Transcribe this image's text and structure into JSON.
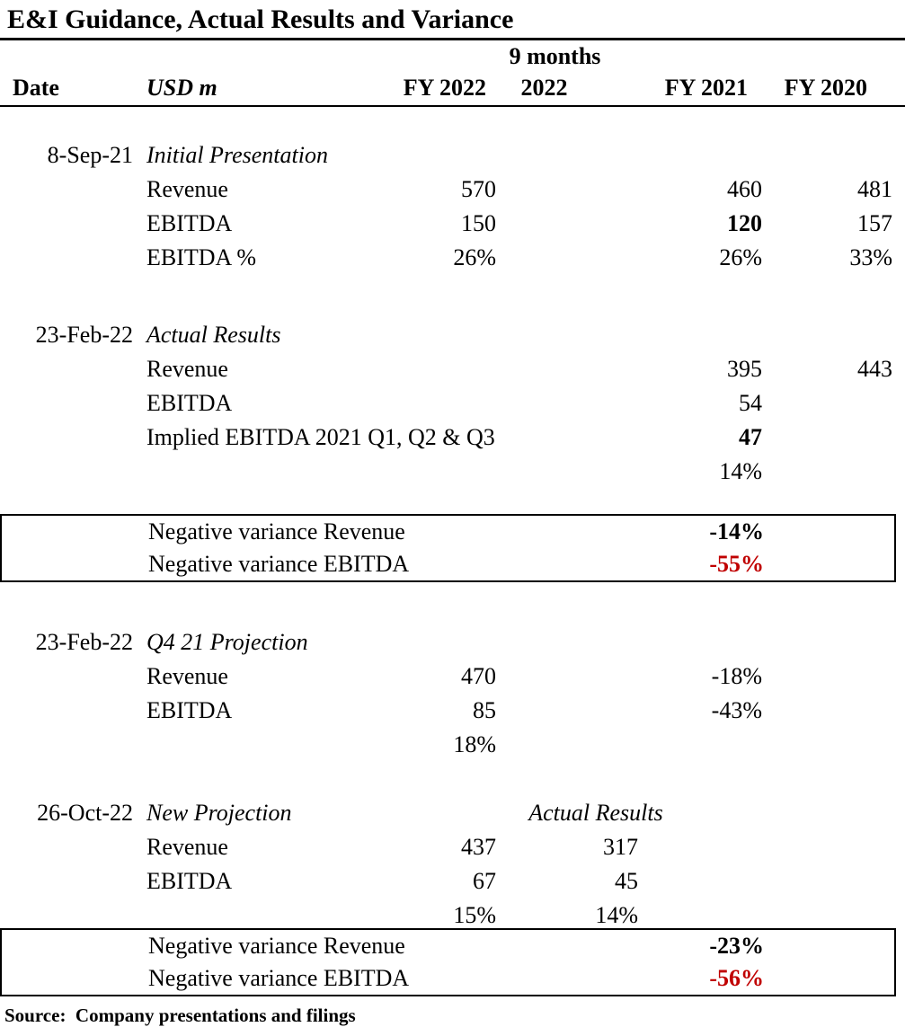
{
  "title": "E&I Guidance, Actual Results and Variance",
  "colors": {
    "negative_red": "#c00000",
    "text": "#000000",
    "border": "#000000",
    "background": "#ffffff"
  },
  "header": {
    "date": "Date",
    "unit": "USD m",
    "fy2022": "FY 2022",
    "nine_months": "9 months",
    "nine_months_year": "2022",
    "fy2021": "FY 2021",
    "fy2020": "FY 2020"
  },
  "sections": [
    {
      "date": "8-Sep-21",
      "title": "Initial Presentation",
      "rows": [
        {
          "label": "Revenue",
          "fy2022": "570",
          "fy2021": "460",
          "fy2020": "481"
        },
        {
          "label": "EBITDA",
          "fy2022": "150",
          "fy2021": "120",
          "fy2020": "157"
        },
        {
          "label": "EBITDA %",
          "fy2022": "26%",
          "fy2021": "26%",
          "fy2020": "33%"
        }
      ]
    },
    {
      "date": "23-Feb-22",
      "title": "Actual Results",
      "rows": [
        {
          "label": "Revenue",
          "fy2021": "395",
          "fy2020": "443"
        },
        {
          "label": "EBITDA",
          "fy2021": "54"
        },
        {
          "label": "Implied EBITDA 2021 Q1, Q2 & Q3",
          "fy2021": "47"
        },
        {
          "label": "",
          "fy2021": "14%"
        }
      ]
    },
    {
      "date": "23-Feb-22",
      "title": "Q4 21 Projection",
      "rows": [
        {
          "label": "Revenue",
          "fy2022": "470",
          "fy2021": "-18%"
        },
        {
          "label": "EBITDA",
          "fy2022": "85",
          "fy2021": "-43%"
        },
        {
          "label": "",
          "fy2022": "18%"
        }
      ]
    },
    {
      "date": "26-Oct-22",
      "title": "New Projection",
      "subheading": "Actual Results",
      "rows": [
        {
          "label": "Revenue",
          "fy2022": "437",
          "m9_2022": "317"
        },
        {
          "label": "EBITDA",
          "fy2022": "67",
          "m9_2022": "45"
        },
        {
          "label": "",
          "fy2022": "15%",
          "m9_2022": "14%"
        }
      ]
    }
  ],
  "variance_boxes": [
    {
      "rows": [
        {
          "label": "Negative variance Revenue",
          "value": "-14%"
        },
        {
          "label": "Negative variance EBITDA",
          "value": "-55%"
        }
      ]
    },
    {
      "rows": [
        {
          "label": "Negative variance Revenue",
          "value": "-23%"
        },
        {
          "label": "Negative variance EBITDA",
          "value": "-56%"
        }
      ]
    }
  ],
  "source": "Source:  Company presentations and filings"
}
